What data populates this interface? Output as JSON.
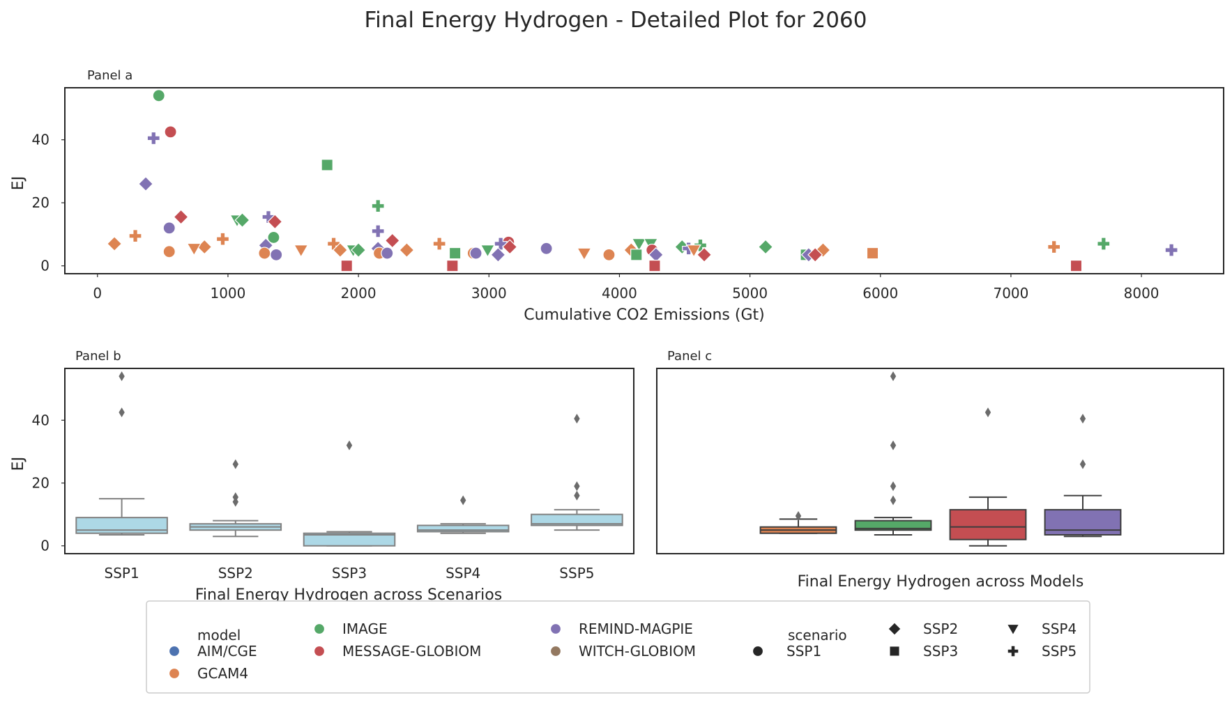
{
  "title": "Final Energy Hydrogen - Detailed Plot for 2060",
  "colors": {
    "models": {
      "AIM/CGE": "#4c72b0",
      "GCAM4": "#dd8452",
      "IMAGE": "#55a868",
      "MESSAGE-GLOBIOM": "#c44e52",
      "REMIND-MAGPIE": "#8172b3",
      "WITCH-GLOBIOM": "#937860"
    },
    "box_scenarios": "#add8e6",
    "box_models": [
      "#dd8452",
      "#55a868",
      "#c44e52",
      "#8172b3"
    ],
    "outlier": "#6b6b6b",
    "axes": "#262626"
  },
  "chart_data": [
    {
      "panel": "Panel a",
      "type": "scatter",
      "xlabel": "Cumulative CO2 Emissions (Gt)",
      "ylabel": "EJ",
      "xlim": [
        -250,
        8630
      ],
      "ylim": [
        -2.5,
        56.5
      ],
      "xticks": [
        0,
        1000,
        2000,
        3000,
        4000,
        5000,
        6000,
        7000,
        8000
      ],
      "yticks": [
        0,
        20,
        40
      ],
      "grid": false,
      "points": [
        {
          "x": 470,
          "y": 54,
          "model": "IMAGE",
          "scenario": "SSP1"
        },
        {
          "x": 560,
          "y": 42.5,
          "model": "MESSAGE-GLOBIOM",
          "scenario": "SSP1"
        },
        {
          "x": 430,
          "y": 40.5,
          "model": "REMIND-MAGPIE",
          "scenario": "SSP5"
        },
        {
          "x": 1760,
          "y": 32,
          "model": "IMAGE",
          "scenario": "SSP3"
        },
        {
          "x": 370,
          "y": 26,
          "model": "REMIND-MAGPIE",
          "scenario": "SSP2"
        },
        {
          "x": 2150,
          "y": 19,
          "model": "IMAGE",
          "scenario": "SSP5"
        },
        {
          "x": 640,
          "y": 15.5,
          "model": "MESSAGE-GLOBIOM",
          "scenario": "SSP2"
        },
        {
          "x": 1310,
          "y": 15.5,
          "model": "REMIND-MAGPIE",
          "scenario": "SSP5"
        },
        {
          "x": 1070,
          "y": 14.5,
          "model": "IMAGE",
          "scenario": "SSP4"
        },
        {
          "x": 1110,
          "y": 14.5,
          "model": "IMAGE",
          "scenario": "SSP2"
        },
        {
          "x": 1360,
          "y": 14,
          "model": "MESSAGE-GLOBIOM",
          "scenario": "SSP2"
        },
        {
          "x": 550,
          "y": 12,
          "model": "REMIND-MAGPIE",
          "scenario": "SSP1"
        },
        {
          "x": 2150,
          "y": 11,
          "model": "REMIND-MAGPIE",
          "scenario": "SSP5"
        },
        {
          "x": 1350,
          "y": 9,
          "model": "IMAGE",
          "scenario": "SSP1"
        },
        {
          "x": 290,
          "y": 9.5,
          "model": "GCAM4",
          "scenario": "SSP5"
        },
        {
          "x": 960,
          "y": 8.5,
          "model": "GCAM4",
          "scenario": "SSP5"
        },
        {
          "x": 2260,
          "y": 8,
          "model": "MESSAGE-GLOBIOM",
          "scenario": "SSP2"
        },
        {
          "x": 3150,
          "y": 7.5,
          "model": "MESSAGE-GLOBIOM",
          "scenario": "SSP1"
        },
        {
          "x": 130,
          "y": 7,
          "model": "GCAM4",
          "scenario": "SSP2"
        },
        {
          "x": 1810,
          "y": 7,
          "model": "GCAM4",
          "scenario": "SSP5"
        },
        {
          "x": 2620,
          "y": 7,
          "model": "GCAM4",
          "scenario": "SSP5"
        },
        {
          "x": 3090,
          "y": 7,
          "model": "REMIND-MAGPIE",
          "scenario": "SSP5"
        },
        {
          "x": 4150,
          "y": 7,
          "model": "IMAGE",
          "scenario": "SSP4"
        },
        {
          "x": 4240,
          "y": 7,
          "model": "IMAGE",
          "scenario": "SSP4"
        },
        {
          "x": 4620,
          "y": 6.5,
          "model": "IMAGE",
          "scenario": "SSP5"
        },
        {
          "x": 7330,
          "y": 6,
          "model": "GCAM4",
          "scenario": "SSP5"
        },
        {
          "x": 7710,
          "y": 7,
          "model": "IMAGE",
          "scenario": "SSP5"
        },
        {
          "x": 1290,
          "y": 6.5,
          "model": "REMIND-MAGPIE",
          "scenario": "SSP2"
        },
        {
          "x": 820,
          "y": 6,
          "model": "GCAM4",
          "scenario": "SSP2"
        },
        {
          "x": 740,
          "y": 5.5,
          "model": "GCAM4",
          "scenario": "SSP4"
        },
        {
          "x": 3160,
          "y": 6,
          "model": "MESSAGE-GLOBIOM",
          "scenario": "SSP2"
        },
        {
          "x": 3440,
          "y": 5.5,
          "model": "REMIND-MAGPIE",
          "scenario": "SSP1"
        },
        {
          "x": 2150,
          "y": 5.5,
          "model": "REMIND-MAGPIE",
          "scenario": "SSP2"
        },
        {
          "x": 4480,
          "y": 6,
          "model": "IMAGE",
          "scenario": "SSP2"
        },
        {
          "x": 4530,
          "y": 5.5,
          "model": "REMIND-MAGPIE",
          "scenario": "SSP5"
        },
        {
          "x": 5120,
          "y": 6,
          "model": "IMAGE",
          "scenario": "SSP2"
        },
        {
          "x": 8230,
          "y": 5,
          "model": "REMIND-MAGPIE",
          "scenario": "SSP5"
        },
        {
          "x": 550,
          "y": 4.5,
          "model": "GCAM4",
          "scenario": "SSP1"
        },
        {
          "x": 1560,
          "y": 5,
          "model": "GCAM4",
          "scenario": "SSP4"
        },
        {
          "x": 1860,
          "y": 5,
          "model": "GCAM4",
          "scenario": "SSP2"
        },
        {
          "x": 1960,
          "y": 5,
          "model": "IMAGE",
          "scenario": "SSP4"
        },
        {
          "x": 2000,
          "y": 5,
          "model": "IMAGE",
          "scenario": "SSP2"
        },
        {
          "x": 2370,
          "y": 5,
          "model": "GCAM4",
          "scenario": "SSP2"
        },
        {
          "x": 2990,
          "y": 5,
          "model": "IMAGE",
          "scenario": "SSP4"
        },
        {
          "x": 4090,
          "y": 5,
          "model": "GCAM4",
          "scenario": "SSP2"
        },
        {
          "x": 4250,
          "y": 5,
          "model": "MESSAGE-GLOBIOM",
          "scenario": "SSP1"
        },
        {
          "x": 4570,
          "y": 5,
          "model": "GCAM4",
          "scenario": "SSP4"
        },
        {
          "x": 5560,
          "y": 5,
          "model": "GCAM4",
          "scenario": "SSP2"
        },
        {
          "x": 1280,
          "y": 4,
          "model": "GCAM4",
          "scenario": "SSP1"
        },
        {
          "x": 1370,
          "y": 3.5,
          "model": "REMIND-MAGPIE",
          "scenario": "SSP1"
        },
        {
          "x": 2160,
          "y": 4,
          "model": "GCAM4",
          "scenario": "SSP1"
        },
        {
          "x": 2220,
          "y": 4,
          "model": "REMIND-MAGPIE",
          "scenario": "SSP1"
        },
        {
          "x": 2740,
          "y": 4,
          "model": "IMAGE",
          "scenario": "SSP3"
        },
        {
          "x": 2880,
          "y": 4,
          "model": "GCAM4",
          "scenario": "SSP1"
        },
        {
          "x": 2900,
          "y": 4,
          "model": "REMIND-MAGPIE",
          "scenario": "SSP1"
        },
        {
          "x": 3070,
          "y": 3.5,
          "model": "REMIND-MAGPIE",
          "scenario": "SSP2"
        },
        {
          "x": 3730,
          "y": 4,
          "model": "GCAM4",
          "scenario": "SSP4"
        },
        {
          "x": 3920,
          "y": 3.5,
          "model": "GCAM4",
          "scenario": "SSP1"
        },
        {
          "x": 4130,
          "y": 3.5,
          "model": "IMAGE",
          "scenario": "SSP3"
        },
        {
          "x": 4280,
          "y": 3.5,
          "model": "REMIND-MAGPIE",
          "scenario": "SSP2"
        },
        {
          "x": 4650,
          "y": 3.5,
          "model": "MESSAGE-GLOBIOM",
          "scenario": "SSP2"
        },
        {
          "x": 5430,
          "y": 3.5,
          "model": "IMAGE",
          "scenario": "SSP3"
        },
        {
          "x": 5450,
          "y": 3.5,
          "model": "REMIND-MAGPIE",
          "scenario": "SSP2"
        },
        {
          "x": 5500,
          "y": 3.5,
          "model": "MESSAGE-GLOBIOM",
          "scenario": "SSP2"
        },
        {
          "x": 5940,
          "y": 4,
          "model": "GCAM4",
          "scenario": "SSP3"
        },
        {
          "x": 1910,
          "y": 0,
          "model": "MESSAGE-GLOBIOM",
          "scenario": "SSP3"
        },
        {
          "x": 2720,
          "y": 0,
          "model": "MESSAGE-GLOBIOM",
          "scenario": "SSP3"
        },
        {
          "x": 4270,
          "y": 0,
          "model": "MESSAGE-GLOBIOM",
          "scenario": "SSP3"
        },
        {
          "x": 7500,
          "y": 0,
          "model": "MESSAGE-GLOBIOM",
          "scenario": "SSP3"
        }
      ]
    },
    {
      "panel": "Panel b",
      "type": "box",
      "xlabel": "Final Energy Hydrogen across Scenarios",
      "ylabel": "EJ",
      "ylim": [
        -2.5,
        56.5
      ],
      "yticks": [
        0,
        20,
        40
      ],
      "categories": [
        "SSP1",
        "SSP2",
        "SSP3",
        "SSP4",
        "SSP5"
      ],
      "boxes": [
        {
          "whislo": 3.5,
          "q1": 4,
          "med": 5,
          "q3": 9,
          "whishi": 15,
          "fliers": [
            42.5,
            54
          ]
        },
        {
          "whislo": 3,
          "q1": 5,
          "med": 6,
          "q3": 7,
          "whishi": 8,
          "fliers": [
            14,
            15.5,
            26
          ]
        },
        {
          "whislo": 0,
          "q1": 0,
          "med": 3.5,
          "q3": 4,
          "whishi": 4.5,
          "fliers": [
            32
          ]
        },
        {
          "whislo": 4,
          "q1": 4.5,
          "med": 5,
          "q3": 6.5,
          "whishi": 7,
          "fliers": [
            14.5
          ]
        },
        {
          "whislo": 5,
          "q1": 6.5,
          "med": 7,
          "q3": 10,
          "whishi": 11.5,
          "fliers": [
            16,
            19,
            40.5
          ]
        }
      ]
    },
    {
      "panel": "Panel c",
      "type": "box",
      "xlabel": "Final Energy Hydrogen across Models",
      "ylim": [
        -2.5,
        56.5
      ],
      "categories": [
        "GCAM4",
        "IMAGE",
        "MESSAGE-GLOBIOM",
        "REMIND-MAGPIE"
      ],
      "boxes": [
        {
          "whislo": 4,
          "q1": 4,
          "med": 5,
          "q3": 6,
          "whishi": 8.5,
          "fliers": [
            9.5
          ]
        },
        {
          "whislo": 3.5,
          "q1": 5,
          "med": 5.5,
          "q3": 8,
          "whishi": 9,
          "fliers": [
            14.5,
            19,
            32,
            54
          ]
        },
        {
          "whislo": 0,
          "q1": 2,
          "med": 6,
          "q3": 11.5,
          "whishi": 15.5,
          "fliers": [
            42.5
          ]
        },
        {
          "whislo": 3,
          "q1": 3.5,
          "med": 5,
          "q3": 11.5,
          "whishi": 16,
          "fliers": [
            26,
            40.5
          ]
        }
      ]
    }
  ],
  "legend": {
    "model_title": "model",
    "models": [
      "AIM/CGE",
      "GCAM4",
      "IMAGE",
      "MESSAGE-GLOBIOM",
      "REMIND-MAGPIE",
      "WITCH-GLOBIOM"
    ],
    "scenario_title": "scenario",
    "scenarios": [
      {
        "label": "SSP1",
        "marker": "circle"
      },
      {
        "label": "SSP2",
        "marker": "diamond"
      },
      {
        "label": "SSP3",
        "marker": "square"
      },
      {
        "label": "SSP4",
        "marker": "triangle-down"
      },
      {
        "label": "SSP5",
        "marker": "plus"
      }
    ],
    "placement": "bottom-center"
  }
}
